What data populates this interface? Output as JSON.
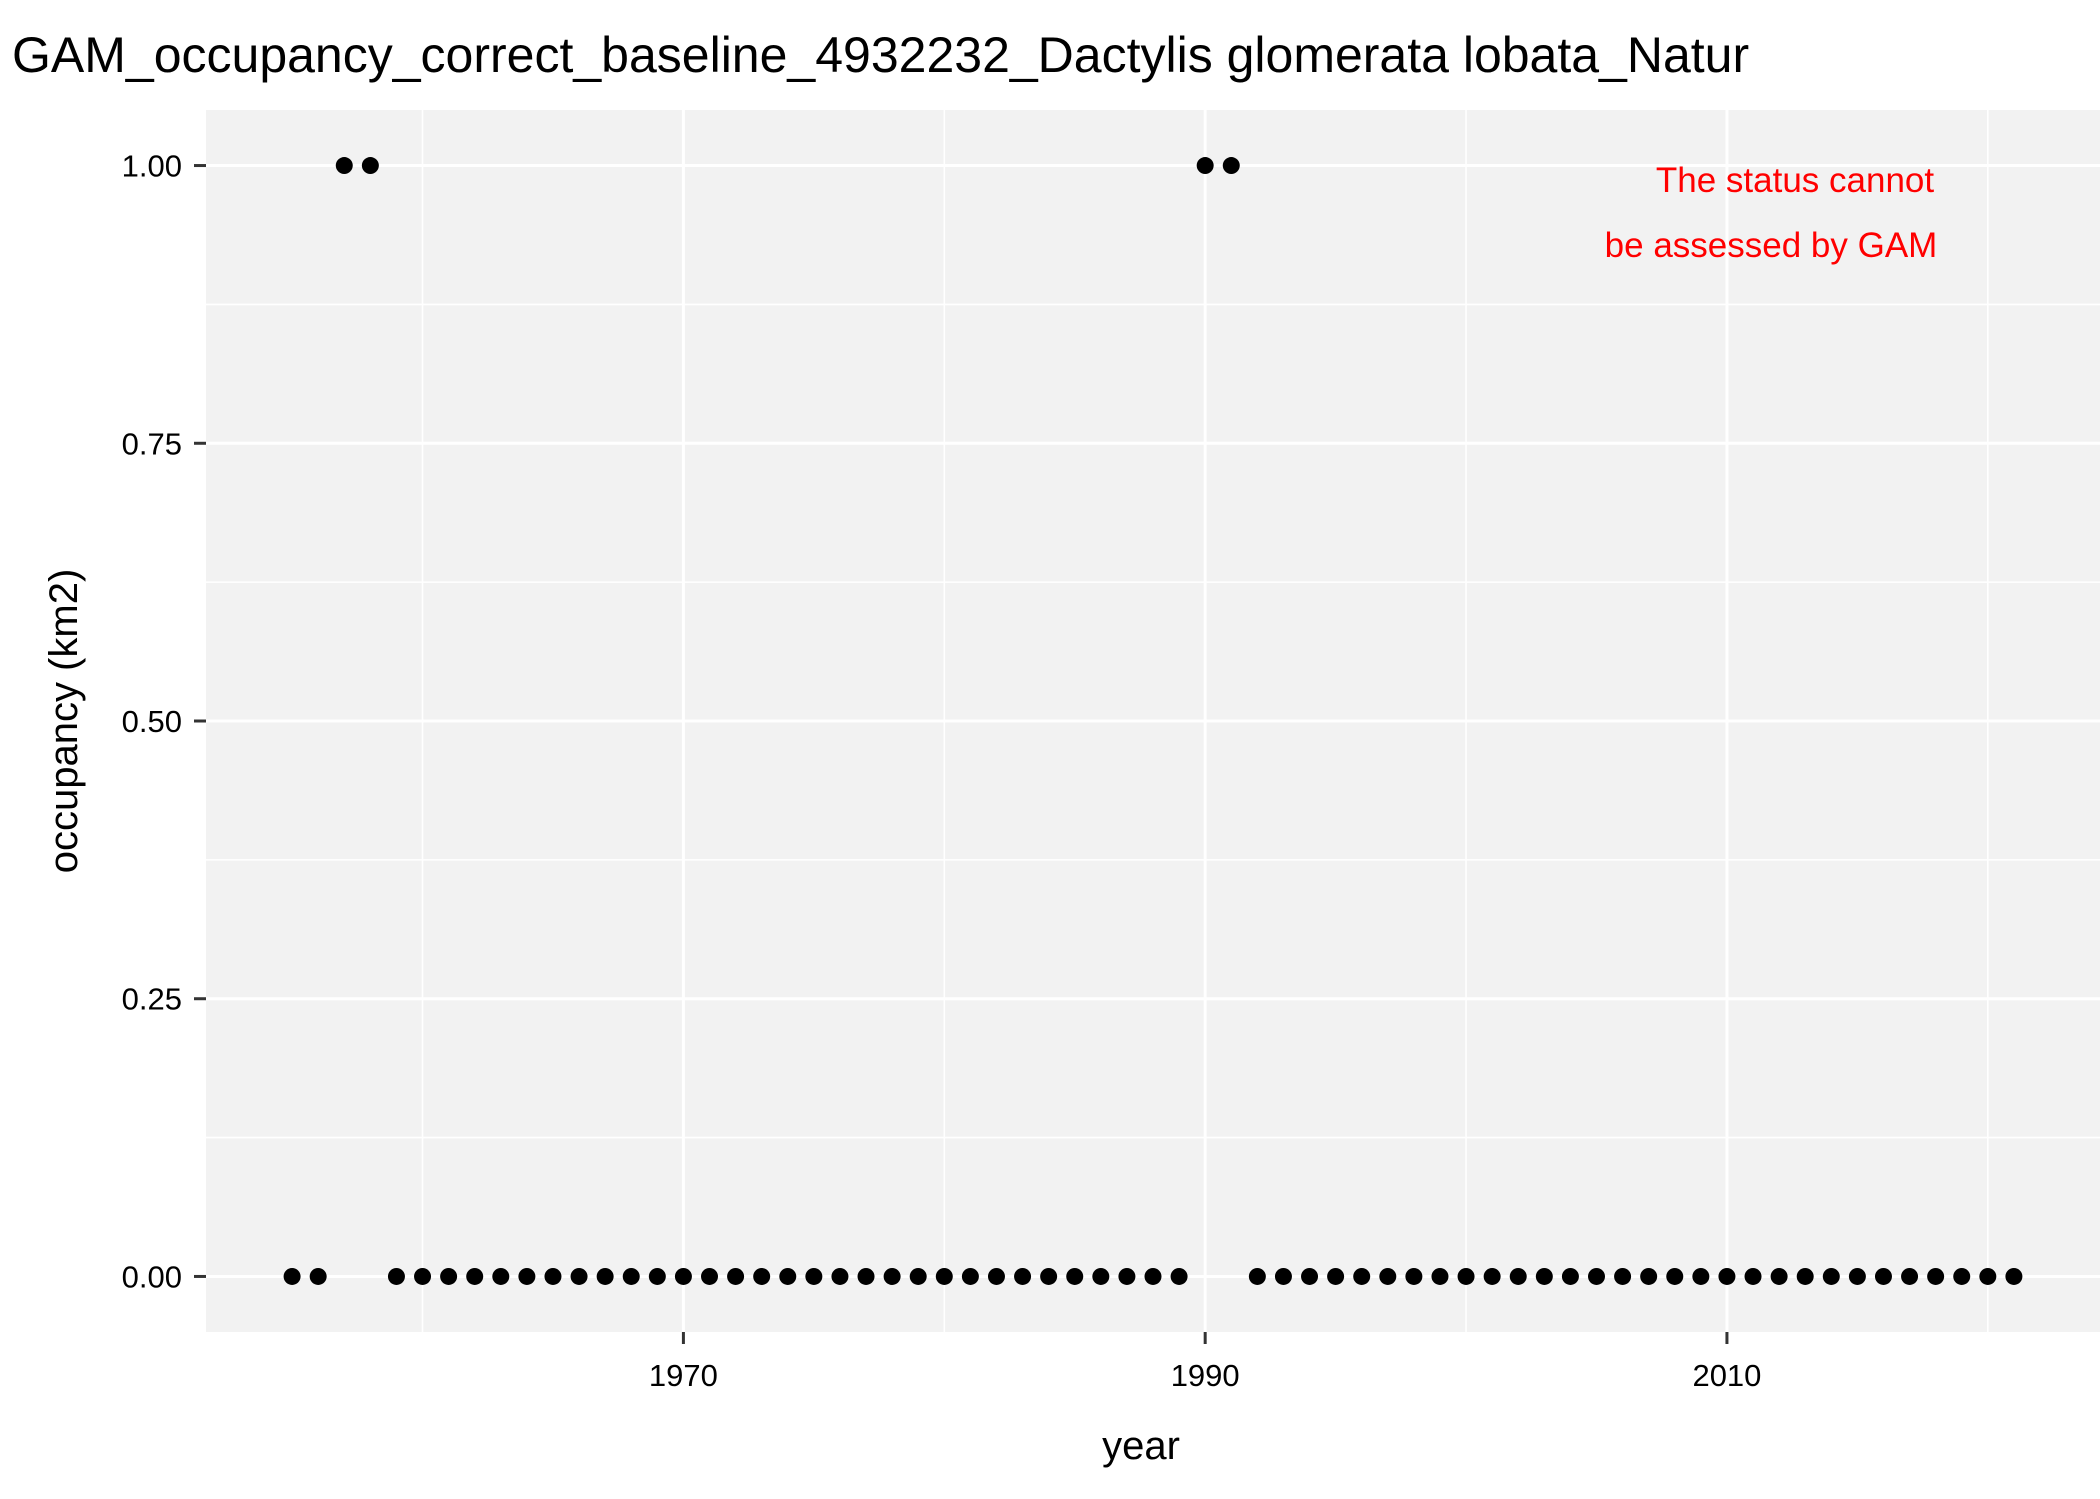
{
  "chart_data": {
    "type": "scatter",
    "title": "GAM_occupancy_correct_baseline_4932232_Dactylis glomerata lobata_Natur",
    "xlabel": "year",
    "ylabel": "occupancy (km2)",
    "xlim": [
      1951.7,
      2024.3
    ],
    "ylim": [
      -0.05,
      1.05
    ],
    "x_ticks": [
      1970,
      1990,
      2010
    ],
    "x_tick_labels": [
      "1970",
      "1990",
      "2010"
    ],
    "y_ticks": [
      0,
      0.25,
      0.5,
      0.75,
      1
    ],
    "y_tick_labels": [
      "0.00",
      "0.25",
      "0.50",
      "0.75",
      "1.00"
    ],
    "grid": true,
    "annotation": [
      "The status cannot",
      "be assessed by GAM"
    ],
    "colors": {
      "panel": "#f2f2f2",
      "grid": "#ffffff",
      "points": "#000000",
      "annotation": "#ff0000"
    },
    "points": [
      {
        "x": 1955,
        "y": 0
      },
      {
        "x": 1956,
        "y": 0
      },
      {
        "x": 1957,
        "y": 1
      },
      {
        "x": 1958,
        "y": 1
      },
      {
        "x": 1959,
        "y": 0
      },
      {
        "x": 1960,
        "y": 0
      },
      {
        "x": 1961,
        "y": 0
      },
      {
        "x": 1962,
        "y": 0
      },
      {
        "x": 1963,
        "y": 0
      },
      {
        "x": 1964,
        "y": 0
      },
      {
        "x": 1965,
        "y": 0
      },
      {
        "x": 1966,
        "y": 0
      },
      {
        "x": 1967,
        "y": 0
      },
      {
        "x": 1968,
        "y": 0
      },
      {
        "x": 1969,
        "y": 0
      },
      {
        "x": 1970,
        "y": 0
      },
      {
        "x": 1971,
        "y": 0
      },
      {
        "x": 1972,
        "y": 0
      },
      {
        "x": 1973,
        "y": 0
      },
      {
        "x": 1974,
        "y": 0
      },
      {
        "x": 1975,
        "y": 0
      },
      {
        "x": 1976,
        "y": 0
      },
      {
        "x": 1977,
        "y": 0
      },
      {
        "x": 1978,
        "y": 0
      },
      {
        "x": 1979,
        "y": 0
      },
      {
        "x": 1980,
        "y": 0
      },
      {
        "x": 1981,
        "y": 0
      },
      {
        "x": 1982,
        "y": 0
      },
      {
        "x": 1983,
        "y": 0
      },
      {
        "x": 1984,
        "y": 0
      },
      {
        "x": 1985,
        "y": 0
      },
      {
        "x": 1986,
        "y": 0
      },
      {
        "x": 1987,
        "y": 0
      },
      {
        "x": 1988,
        "y": 0
      },
      {
        "x": 1989,
        "y": 0
      },
      {
        "x": 1990,
        "y": 1
      },
      {
        "x": 1991,
        "y": 1
      },
      {
        "x": 1992,
        "y": 0
      },
      {
        "x": 1993,
        "y": 0
      },
      {
        "x": 1994,
        "y": 0
      },
      {
        "x": 1995,
        "y": 0
      },
      {
        "x": 1996,
        "y": 0
      },
      {
        "x": 1997,
        "y": 0
      },
      {
        "x": 1998,
        "y": 0
      },
      {
        "x": 1999,
        "y": 0
      },
      {
        "x": 2000,
        "y": 0
      },
      {
        "x": 2001,
        "y": 0
      },
      {
        "x": 2002,
        "y": 0
      },
      {
        "x": 2003,
        "y": 0
      },
      {
        "x": 2004,
        "y": 0
      },
      {
        "x": 2005,
        "y": 0
      },
      {
        "x": 2006,
        "y": 0
      },
      {
        "x": 2007,
        "y": 0
      },
      {
        "x": 2008,
        "y": 0
      },
      {
        "x": 2009,
        "y": 0
      },
      {
        "x": 2010,
        "y": 0
      },
      {
        "x": 2011,
        "y": 0
      },
      {
        "x": 2012,
        "y": 0
      },
      {
        "x": 2013,
        "y": 0
      },
      {
        "x": 2014,
        "y": 0
      },
      {
        "x": 2015,
        "y": 0
      },
      {
        "x": 2016,
        "y": 0
      },
      {
        "x": 2017,
        "y": 0
      },
      {
        "x": 2018,
        "y": 0
      },
      {
        "x": 2019,
        "y": 0
      },
      {
        "x": 2020,
        "y": 0
      },
      {
        "x": 2021,
        "y": 0
      }
    ]
  }
}
